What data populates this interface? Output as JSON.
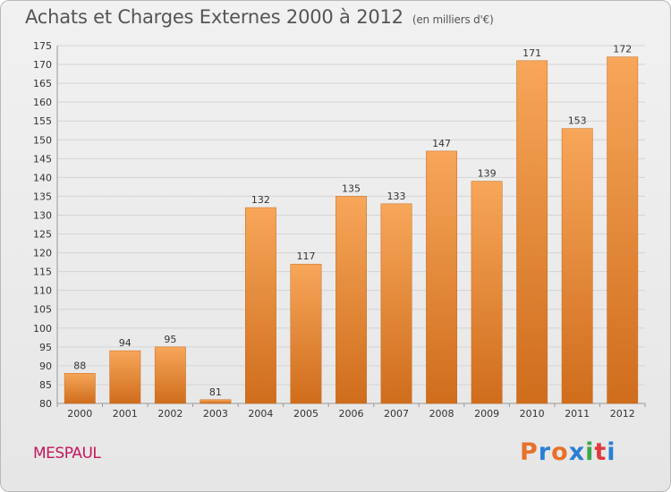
{
  "header": {
    "title": "Achats et Charges Externes 2000 à 2012",
    "unit": "(en milliers d'€)"
  },
  "footer": {
    "commune": "MESPAUL",
    "logo_letters": [
      "P",
      "r",
      "o",
      "x",
      "i",
      "t",
      "i"
    ],
    "logo_colors": [
      "#e8702a",
      "#2a7fd4",
      "#e8702a",
      "#2a7fd4",
      "#3aa84a",
      "#e03a3a",
      "#2a7fd4"
    ]
  },
  "colors": {
    "bar_top": "#f7a65a",
    "bar_bottom": "#cf6d1c",
    "grid": "#d4d4d4",
    "text": "#333333"
  },
  "chart_data": {
    "type": "bar",
    "title": "Achats et Charges Externes 2000 à 2012",
    "subtitle": "(en milliers d'€)",
    "categories": [
      "2000",
      "2001",
      "2002",
      "2003",
      "2004",
      "2005",
      "2006",
      "2007",
      "2008",
      "2009",
      "2010",
      "2011",
      "2012"
    ],
    "values": [
      88,
      94,
      95,
      81,
      132,
      117,
      135,
      133,
      147,
      139,
      171,
      153,
      172
    ],
    "ylim": [
      80,
      175
    ],
    "yticks": [
      80,
      85,
      90,
      95,
      100,
      105,
      110,
      115,
      120,
      125,
      130,
      135,
      140,
      145,
      150,
      155,
      160,
      165,
      170,
      175
    ],
    "grid": true,
    "legend": false,
    "xlabel": "",
    "ylabel": ""
  }
}
